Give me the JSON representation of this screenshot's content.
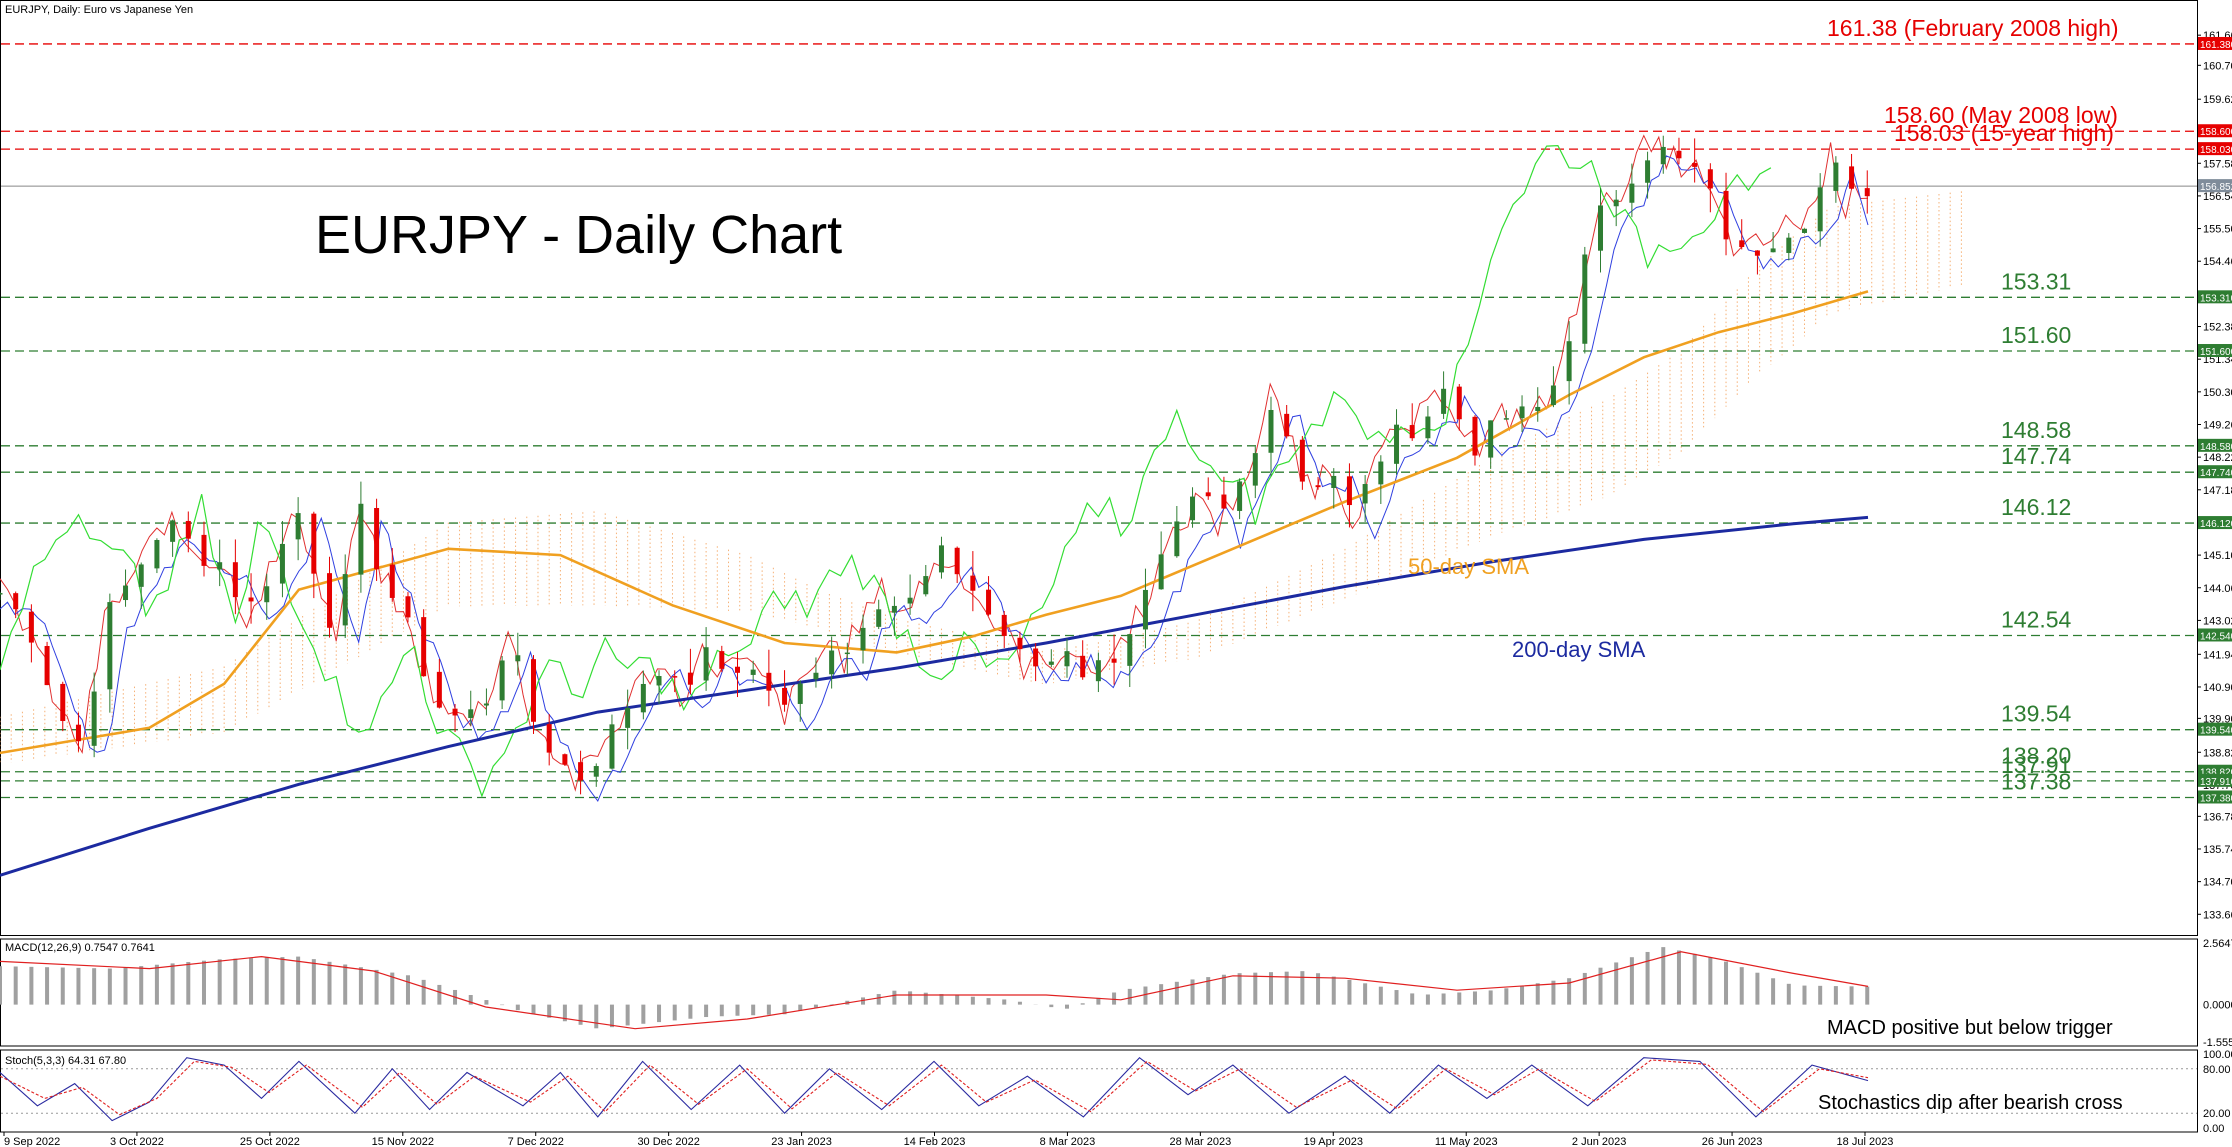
{
  "header": {
    "symbol_label": "EURJPY, Daily:  Euro vs Japanese Yen"
  },
  "chart_title": "EURJPY - Daily Chart",
  "chart_data": {
    "type": "line",
    "price_axis": {
      "ylim": [
        133.0,
        162.78
      ],
      "ticks": [
        "162.780",
        "161.660",
        "160.700",
        "159.620",
        "158.580",
        "157.580",
        "156.540",
        "155.500",
        "154.460",
        "153.420",
        "152.380",
        "151.340",
        "150.300",
        "149.260",
        "148.220",
        "147.180",
        "146.140",
        "145.100",
        "144.060",
        "143.020",
        "141.940",
        "140.900",
        "139.900",
        "138.820",
        "137.780",
        "136.780",
        "135.740",
        "134.700",
        "133.660"
      ],
      "current_price": 156.852,
      "current_price_label": "156.852"
    },
    "x_axis_labels": [
      "9 Sep 2022",
      "3 Oct 2022",
      "25 Oct 2022",
      "15 Nov 2022",
      "7 Dec 2022",
      "30 Dec 2022",
      "23 Jan 2023",
      "14 Feb 2023",
      "8 Mar 2023",
      "28 Mar 2023",
      "19 Apr 2023",
      "11 May 2023",
      "2 Jun 2023",
      "26 Jun 2023",
      "18 Jul 2023"
    ],
    "levels": [
      {
        "value": 161.38,
        "text": "161.38 (February 2008 high)",
        "tag": "161.380",
        "color": "#e60000"
      },
      {
        "value": 158.6,
        "text": "158.60 (May 2008 low)",
        "tag": "158.600",
        "color": "#e60000"
      },
      {
        "value": 158.03,
        "text": "158.03 (15-year high)",
        "tag": "158.030",
        "color": "#e60000"
      },
      {
        "value": 153.31,
        "text": "153.31",
        "tag": "153.310",
        "color": "#2e7d32"
      },
      {
        "value": 151.6,
        "text": "151.60",
        "tag": "151.600",
        "color": "#2e7d32"
      },
      {
        "value": 148.58,
        "text": "148.58",
        "tag": "148.580",
        "color": "#2e7d32"
      },
      {
        "value": 147.74,
        "text": "147.74",
        "tag": "147.740",
        "color": "#2e7d32"
      },
      {
        "value": 146.12,
        "text": "146.12",
        "tag": "146.120",
        "color": "#2e7d32"
      },
      {
        "value": 142.54,
        "text": "142.54",
        "tag": "142.540",
        "color": "#2e7d32"
      },
      {
        "value": 139.54,
        "text": "139.54",
        "tag": "139.540",
        "color": "#2e7d32"
      },
      {
        "value": 138.2,
        "text": "138.20",
        "tag": "138.820",
        "color": "#2e7d32"
      },
      {
        "value": 137.91,
        "text": "137.91",
        "tag": "137.910",
        "color": "#2e7d32"
      },
      {
        "value": 137.38,
        "text": "137.38",
        "tag": "137.380",
        "color": "#2e7d32"
      }
    ],
    "price_path": [
      [
        0,
        143.9
      ],
      [
        8,
        142.8
      ],
      [
        16,
        140.0
      ],
      [
        22,
        139.0
      ],
      [
        28,
        143.0
      ],
      [
        36,
        144.5
      ],
      [
        44,
        146.2
      ],
      [
        52,
        145.3
      ],
      [
        60,
        144.8
      ],
      [
        66,
        143.2
      ],
      [
        74,
        145.0
      ],
      [
        80,
        146.5
      ],
      [
        84,
        144.8
      ],
      [
        90,
        142.5
      ],
      [
        96,
        146.5
      ],
      [
        103,
        144.3
      ],
      [
        110,
        142.5
      ],
      [
        118,
        140.2
      ],
      [
        124,
        139.8
      ],
      [
        130,
        140.5
      ],
      [
        136,
        142.6
      ],
      [
        142,
        140.0
      ],
      [
        146,
        139.2
      ],
      [
        150,
        138.6
      ],
      [
        154,
        137.9
      ],
      [
        158,
        138.4
      ],
      [
        164,
        139.5
      ],
      [
        170,
        140.8
      ],
      [
        176,
        141.7
      ],
      [
        182,
        140.6
      ],
      [
        188,
        141.9
      ],
      [
        193,
        141.5
      ],
      [
        198,
        141.6
      ],
      [
        204,
        141.2
      ],
      [
        210,
        140.1
      ],
      [
        216,
        141.2
      ],
      [
        222,
        142.4
      ],
      [
        226,
        141.8
      ],
      [
        230,
        143.0
      ],
      [
        236,
        143.9
      ],
      [
        242,
        143.3
      ],
      [
        246,
        144.0
      ],
      [
        252,
        145.0
      ],
      [
        258,
        144.5
      ],
      [
        264,
        143.3
      ],
      [
        270,
        142.4
      ],
      [
        274,
        141.6
      ],
      [
        280,
        141.6
      ],
      [
        286,
        142.3
      ],
      [
        290,
        141.4
      ],
      [
        296,
        141.6
      ],
      [
        302,
        142.7
      ],
      [
        306,
        143.6
      ],
      [
        312,
        145.1
      ],
      [
        318,
        146.4
      ],
      [
        322,
        147.0
      ],
      [
        326,
        146.0
      ],
      [
        330,
        146.9
      ],
      [
        336,
        148.3
      ],
      [
        340,
        150.2
      ],
      [
        344,
        149.2
      ],
      [
        348,
        147.6
      ],
      [
        352,
        147.4
      ],
      [
        356,
        148.0
      ],
      [
        362,
        146.3
      ],
      [
        366,
        147.3
      ],
      [
        370,
        148.4
      ],
      [
        376,
        149.1
      ],
      [
        382,
        149.6
      ],
      [
        386,
        150.4
      ],
      [
        390,
        149.6
      ],
      [
        396,
        148.4
      ],
      [
        402,
        149.5
      ],
      [
        408,
        149.5
      ],
      [
        414,
        149.9
      ],
      [
        418,
        151.3
      ],
      [
        422,
        153.2
      ],
      [
        426,
        155.4
      ],
      [
        430,
        156.2
      ],
      [
        436,
        157.2
      ],
      [
        440,
        158.0
      ],
      [
        446,
        157.9
      ],
      [
        450,
        157.5
      ],
      [
        454,
        157.3
      ],
      [
        458,
        156.4
      ],
      [
        462,
        155.4
      ],
      [
        466,
        154.6
      ],
      [
        470,
        154.9
      ],
      [
        476,
        155.4
      ],
      [
        482,
        155.8
      ],
      [
        486,
        156.3
      ],
      [
        490,
        157.9
      ],
      [
        494,
        156.2
      ],
      [
        498,
        156.85
      ]
    ],
    "sma50": [
      [
        0,
        138.8
      ],
      [
        40,
        139.6
      ],
      [
        60,
        141.0
      ],
      [
        80,
        144.0
      ],
      [
        120,
        145.3
      ],
      [
        150,
        145.1
      ],
      [
        180,
        143.5
      ],
      [
        210,
        142.3
      ],
      [
        240,
        142.0
      ],
      [
        260,
        142.5
      ],
      [
        280,
        143.2
      ],
      [
        300,
        143.8
      ],
      [
        330,
        145.3
      ],
      [
        360,
        146.8
      ],
      [
        390,
        148.2
      ],
      [
        420,
        150.2
      ],
      [
        440,
        151.4
      ],
      [
        460,
        152.2
      ],
      [
        480,
        152.8
      ],
      [
        500,
        153.5
      ]
    ],
    "sma200": [
      [
        0,
        134.9
      ],
      [
        40,
        136.4
      ],
      [
        80,
        137.8
      ],
      [
        120,
        139.0
      ],
      [
        160,
        140.1
      ],
      [
        200,
        140.8
      ],
      [
        240,
        141.5
      ],
      [
        280,
        142.3
      ],
      [
        320,
        143.2
      ],
      [
        360,
        144.1
      ],
      [
        400,
        144.9
      ],
      [
        440,
        145.6
      ],
      [
        480,
        146.1
      ],
      [
        500,
        146.3
      ]
    ],
    "sma_labels": {
      "sma50": "50-day SMA",
      "sma200": "200-day SMA"
    },
    "annotations": [],
    "macd": {
      "label": "MACD(12,26,9) 0.7547 0.7641",
      "scale_top": "2.5647",
      "scale_zero": "0.0000",
      "scale_bottom": "-1.5556",
      "annotation": "MACD positive but below trigger",
      "hist_points": [
        [
          0,
          1.6
        ],
        [
          30,
          1.5
        ],
        [
          60,
          1.9
        ],
        [
          80,
          2.0
        ],
        [
          110,
          1.2
        ],
        [
          140,
          -0.3
        ],
        [
          160,
          -1.0
        ],
        [
          190,
          -0.5
        ],
        [
          210,
          -0.4
        ],
        [
          240,
          0.6
        ],
        [
          270,
          0.2
        ],
        [
          285,
          -0.2
        ],
        [
          300,
          0.6
        ],
        [
          330,
          1.3
        ],
        [
          350,
          1.4
        ],
        [
          380,
          0.4
        ],
        [
          400,
          0.6
        ],
        [
          420,
          1.1
        ],
        [
          445,
          2.4
        ],
        [
          460,
          1.9
        ],
        [
          480,
          0.8
        ],
        [
          500,
          0.75
        ]
      ],
      "signal_points": [
        [
          0,
          1.8
        ],
        [
          40,
          1.5
        ],
        [
          70,
          2.0
        ],
        [
          100,
          1.4
        ],
        [
          130,
          -0.1
        ],
        [
          170,
          -1.0
        ],
        [
          200,
          -0.6
        ],
        [
          240,
          0.4
        ],
        [
          280,
          0.4
        ],
        [
          300,
          0.2
        ],
        [
          330,
          1.2
        ],
        [
          360,
          1.1
        ],
        [
          390,
          0.6
        ],
        [
          420,
          0.9
        ],
        [
          450,
          2.2
        ],
        [
          480,
          1.3
        ],
        [
          500,
          0.76
        ]
      ]
    },
    "stochastic": {
      "label": "Stoch(5,3,3) 64.31 67.80",
      "scale_top": "100.00",
      "scale_80": "80.00",
      "scale_20": "20.00",
      "scale_bottom": "0.00",
      "annotation": "Stochastics dip after bearish cross",
      "k": [
        [
          0,
          75
        ],
        [
          10,
          30
        ],
        [
          20,
          60
        ],
        [
          30,
          10
        ],
        [
          40,
          35
        ],
        [
          50,
          95
        ],
        [
          60,
          85
        ],
        [
          70,
          40
        ],
        [
          80,
          90
        ],
        [
          95,
          20
        ],
        [
          105,
          80
        ],
        [
          115,
          25
        ],
        [
          125,
          75
        ],
        [
          140,
          30
        ],
        [
          150,
          75
        ],
        [
          160,
          15
        ],
        [
          172,
          90
        ],
        [
          185,
          25
        ],
        [
          198,
          85
        ],
        [
          210,
          20
        ],
        [
          222,
          80
        ],
        [
          236,
          25
        ],
        [
          250,
          90
        ],
        [
          262,
          30
        ],
        [
          275,
          70
        ],
        [
          290,
          15
        ],
        [
          305,
          95
        ],
        [
          318,
          45
        ],
        [
          330,
          85
        ],
        [
          345,
          20
        ],
        [
          360,
          70
        ],
        [
          372,
          20
        ],
        [
          385,
          85
        ],
        [
          398,
          40
        ],
        [
          410,
          85
        ],
        [
          425,
          30
        ],
        [
          440,
          95
        ],
        [
          455,
          90
        ],
        [
          470,
          15
        ],
        [
          485,
          85
        ],
        [
          500,
          64
        ]
      ],
      "d": [
        [
          0,
          70
        ],
        [
          12,
          40
        ],
        [
          22,
          55
        ],
        [
          32,
          18
        ],
        [
          42,
          40
        ],
        [
          52,
          90
        ],
        [
          62,
          82
        ],
        [
          72,
          48
        ],
        [
          82,
          85
        ],
        [
          97,
          28
        ],
        [
          107,
          75
        ],
        [
          117,
          32
        ],
        [
          127,
          70
        ],
        [
          142,
          35
        ],
        [
          152,
          70
        ],
        [
          162,
          22
        ],
        [
          174,
          85
        ],
        [
          187,
          32
        ],
        [
          200,
          80
        ],
        [
          212,
          26
        ],
        [
          224,
          75
        ],
        [
          238,
          30
        ],
        [
          252,
          85
        ],
        [
          264,
          35
        ],
        [
          277,
          65
        ],
        [
          292,
          22
        ],
        [
          307,
          90
        ],
        [
          320,
          50
        ],
        [
          332,
          80
        ],
        [
          347,
          28
        ],
        [
          362,
          65
        ],
        [
          374,
          26
        ],
        [
          387,
          80
        ],
        [
          400,
          45
        ],
        [
          412,
          80
        ],
        [
          427,
          36
        ],
        [
          442,
          92
        ],
        [
          457,
          86
        ],
        [
          472,
          22
        ],
        [
          487,
          80
        ],
        [
          500,
          68
        ]
      ]
    },
    "grid": false
  },
  "colors": {
    "bull": "#2e7d32",
    "bear": "#e60000",
    "sma50": "#f0a020",
    "sma200": "#1c2aa0",
    "tenkan": "#e03030",
    "kijun": "#3040e0",
    "chikou": "#33dd33",
    "cloud": "#f4a460",
    "macd_hist": "#a0a0a0",
    "macd_signal": "#e02020",
    "stoch_k": "#2a2aa0",
    "stoch_d": "#e02020"
  }
}
